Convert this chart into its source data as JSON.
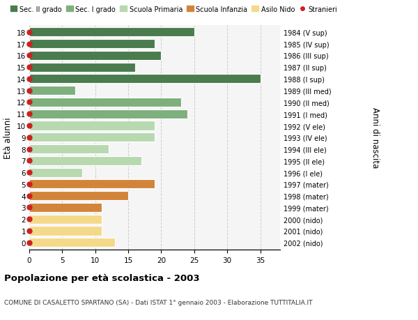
{
  "ages": [
    18,
    17,
    16,
    15,
    14,
    13,
    12,
    11,
    10,
    9,
    8,
    7,
    6,
    5,
    4,
    3,
    2,
    1,
    0
  ],
  "values": [
    25,
    19,
    20,
    16,
    35,
    7,
    23,
    24,
    19,
    19,
    12,
    17,
    8,
    19,
    15,
    11,
    11,
    11,
    13
  ],
  "right_labels": [
    "1984 (V sup)",
    "1985 (IV sup)",
    "1986 (III sup)",
    "1987 (II sup)",
    "1988 (I sup)",
    "1989 (III med)",
    "1990 (II med)",
    "1991 (I med)",
    "1992 (V ele)",
    "1993 (IV ele)",
    "1994 (III ele)",
    "1995 (II ele)",
    "1996 (I ele)",
    "1997 (mater)",
    "1998 (mater)",
    "1999 (mater)",
    "2000 (nido)",
    "2001 (nido)",
    "2002 (nido)"
  ],
  "bar_colors": [
    "#4a7c4e",
    "#4a7c4e",
    "#4a7c4e",
    "#4a7c4e",
    "#4a7c4e",
    "#7db07d",
    "#7db07d",
    "#7db07d",
    "#b8d8b0",
    "#b8d8b0",
    "#b8d8b0",
    "#b8d8b0",
    "#b8d8b0",
    "#d2853a",
    "#d2853a",
    "#d2853a",
    "#f5d98b",
    "#f5d98b",
    "#f5d98b"
  ],
  "legend_labels": [
    "Sec. II grado",
    "Sec. I grado",
    "Scuola Primaria",
    "Scuola Infanzia",
    "Asilo Nido",
    "Stranieri"
  ],
  "legend_colors": [
    "#4a7c4e",
    "#7db07d",
    "#b8d8b0",
    "#d2853a",
    "#f5d98b",
    "#cc2222"
  ],
  "ylabel_left": "Età alunni",
  "ylabel_right": "Anni di nascita",
  "xlim": [
    0,
    38
  ],
  "xticks": [
    0,
    5,
    10,
    15,
    20,
    25,
    30,
    35
  ],
  "title": "Popolazione per età scolastica - 2003",
  "subtitle": "COMUNE DI CASALETTO SPARTANO (SA) - Dati ISTAT 1° gennaio 2003 - Elaborazione TUTTITALIA.IT",
  "dot_color": "#cc2222",
  "dot_size": 25,
  "bar_height": 0.78,
  "grid_color": "#cccccc",
  "bg_color": "#ffffff",
  "plot_bg_color": "#f5f5f5"
}
